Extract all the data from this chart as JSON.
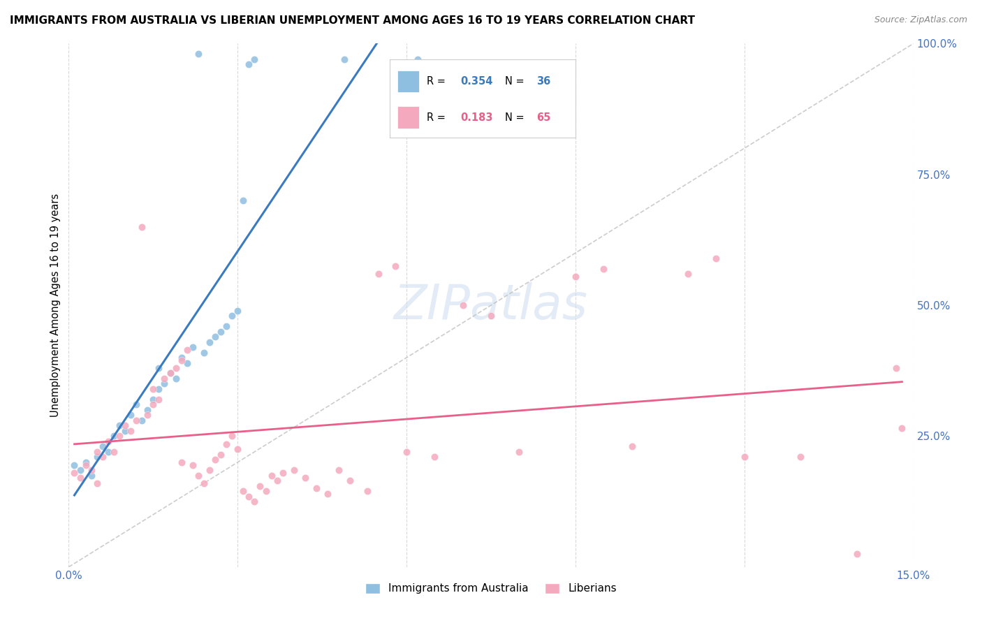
{
  "title": "IMMIGRANTS FROM AUSTRALIA VS LIBERIAN UNEMPLOYMENT AMONG AGES 16 TO 19 YEARS CORRELATION CHART",
  "source": "Source: ZipAtlas.com",
  "ylabel": "Unemployment Among Ages 16 to 19 years",
  "xlim": [
    0.0,
    0.15
  ],
  "ylim": [
    0.0,
    1.0
  ],
  "x_tick_positions": [
    0.0,
    0.03,
    0.06,
    0.09,
    0.12,
    0.15
  ],
  "x_tick_labels": [
    "0.0%",
    "",
    "",
    "",
    "",
    "15.0%"
  ],
  "y_tick_positions": [
    0.0,
    0.25,
    0.5,
    0.75,
    1.0
  ],
  "y_tick_labels_right": [
    "",
    "25.0%",
    "50.0%",
    "75.0%",
    "100.0%"
  ],
  "color_blue": "#8fbfe0",
  "color_pink": "#f4a9be",
  "color_blue_line": "#3a7bbf",
  "color_pink_line": "#e8608a",
  "color_diag": "#c0c0c0",
  "aus_x": [
    0.001,
    0.002,
    0.003,
    0.004,
    0.005,
    0.006,
    0.007,
    0.008,
    0.009,
    0.01,
    0.011,
    0.012,
    0.013,
    0.014,
    0.015,
    0.016,
    0.016,
    0.017,
    0.018,
    0.019,
    0.02,
    0.021,
    0.022,
    0.023,
    0.024,
    0.025,
    0.026,
    0.027,
    0.028,
    0.029,
    0.03,
    0.031,
    0.032,
    0.033,
    0.049,
    0.062
  ],
  "aus_y": [
    0.195,
    0.185,
    0.2,
    0.175,
    0.21,
    0.23,
    0.22,
    0.25,
    0.27,
    0.26,
    0.29,
    0.31,
    0.28,
    0.3,
    0.32,
    0.34,
    0.38,
    0.35,
    0.37,
    0.36,
    0.4,
    0.39,
    0.42,
    0.98,
    0.41,
    0.43,
    0.44,
    0.45,
    0.46,
    0.48,
    0.49,
    0.7,
    0.96,
    0.97,
    0.97,
    0.97
  ],
  "lib_x": [
    0.001,
    0.002,
    0.003,
    0.004,
    0.005,
    0.005,
    0.006,
    0.007,
    0.008,
    0.009,
    0.01,
    0.011,
    0.012,
    0.013,
    0.014,
    0.015,
    0.015,
    0.016,
    0.017,
    0.018,
    0.019,
    0.02,
    0.02,
    0.021,
    0.022,
    0.023,
    0.024,
    0.025,
    0.026,
    0.027,
    0.028,
    0.029,
    0.03,
    0.031,
    0.032,
    0.033,
    0.034,
    0.035,
    0.036,
    0.037,
    0.038,
    0.04,
    0.042,
    0.044,
    0.046,
    0.048,
    0.05,
    0.053,
    0.055,
    0.058,
    0.06,
    0.065,
    0.07,
    0.075,
    0.08,
    0.09,
    0.095,
    0.1,
    0.11,
    0.115,
    0.12,
    0.13,
    0.14,
    0.147,
    0.148
  ],
  "lib_y": [
    0.18,
    0.17,
    0.195,
    0.185,
    0.16,
    0.22,
    0.21,
    0.24,
    0.22,
    0.25,
    0.27,
    0.26,
    0.28,
    0.65,
    0.29,
    0.31,
    0.34,
    0.32,
    0.36,
    0.37,
    0.38,
    0.395,
    0.2,
    0.415,
    0.195,
    0.175,
    0.16,
    0.185,
    0.205,
    0.215,
    0.235,
    0.25,
    0.225,
    0.145,
    0.135,
    0.125,
    0.155,
    0.145,
    0.175,
    0.165,
    0.18,
    0.185,
    0.17,
    0.15,
    0.14,
    0.185,
    0.165,
    0.145,
    0.56,
    0.575,
    0.22,
    0.21,
    0.5,
    0.48,
    0.22,
    0.555,
    0.57,
    0.23,
    0.56,
    0.59,
    0.21,
    0.21,
    0.025,
    0.38,
    0.265
  ]
}
